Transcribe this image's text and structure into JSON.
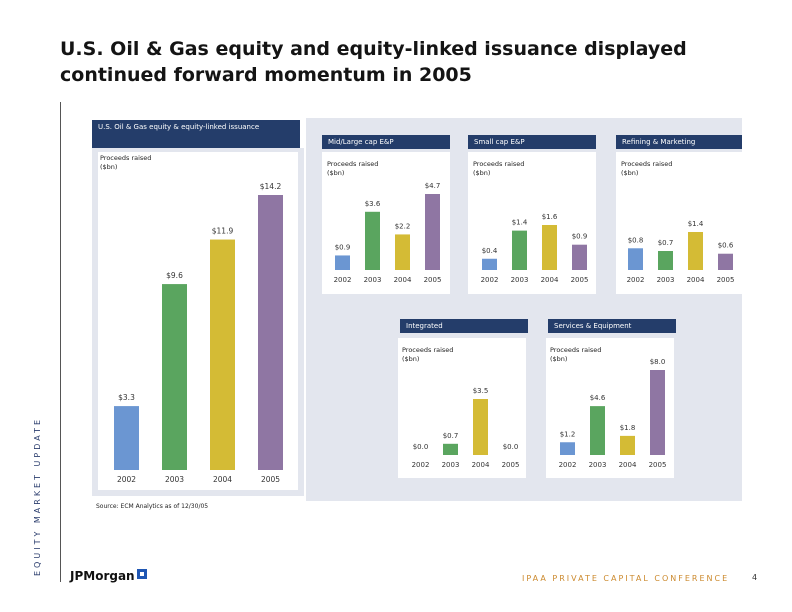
{
  "page": {
    "title": "U.S. Oil & Gas equity and equity-linked issuance displayed continued forward momentum in 2005",
    "side_label": "EQUITY MARKET UPDATE",
    "source": "Source: ECM Analytics as of 12/30/05",
    "brand": "JPMorgan",
    "conference": "IPAA PRIVATE CAPITAL CONFERENCE",
    "page_number": "4"
  },
  "colors": {
    "bars": [
      "#6b96d2",
      "#5aa55f",
      "#d4bb35",
      "#8f76a3"
    ],
    "header": "#243d6a",
    "panel_bg": "#e3e6ee"
  },
  "chart_data": [
    {
      "id": "total",
      "type": "bar",
      "title": "U.S. Oil & Gas equity & equity-linked issuance",
      "ylabel": "Proceeds raised ($bn)",
      "categories": [
        "2002",
        "2003",
        "2004",
        "2005"
      ],
      "values": [
        3.3,
        9.6,
        11.9,
        14.2
      ],
      "labels": [
        "$3.3",
        "$9.6",
        "$11.9",
        "$14.2"
      ],
      "ylim": [
        0,
        14.2
      ]
    },
    {
      "id": "midlarge",
      "type": "bar",
      "title": "Mid/Large cap E&P",
      "ylabel": "Proceeds raised ($bn)",
      "categories": [
        "2002",
        "2003",
        "2004",
        "2005"
      ],
      "values": [
        0.9,
        3.6,
        2.2,
        4.7
      ],
      "labels": [
        "$0.9",
        "$3.6",
        "$2.2",
        "$4.7"
      ],
      "ylim": [
        0,
        4.7
      ]
    },
    {
      "id": "smallcap",
      "type": "bar",
      "title": "Small cap E&P",
      "ylabel": "Proceeds raised ($bn)",
      "categories": [
        "2002",
        "2003",
        "2004",
        "2005"
      ],
      "values": [
        0.4,
        1.4,
        1.6,
        0.9
      ],
      "labels": [
        "$0.4",
        "$1.4",
        "$1.6",
        "$0.9"
      ],
      "ylim": [
        0,
        1.6
      ]
    },
    {
      "id": "refining",
      "type": "bar",
      "title": "Refining & Marketing",
      "ylabel": "Proceeds raised ($bn)",
      "categories": [
        "2002",
        "2003",
        "2004",
        "2005"
      ],
      "values": [
        0.8,
        0.7,
        1.4,
        0.6
      ],
      "labels": [
        "$0.8",
        "$0.7",
        "$1.4",
        "$0.6"
      ],
      "ylim": [
        0,
        1.4
      ]
    },
    {
      "id": "integrated",
      "type": "bar",
      "title": "Integrated",
      "ylabel": "Proceeds raised ($bn)",
      "categories": [
        "2002",
        "2003",
        "2004",
        "2005"
      ],
      "values": [
        0.0,
        0.7,
        3.5,
        0.0
      ],
      "labels": [
        "$0.0",
        "$0.7",
        "$3.5",
        "$0.0"
      ],
      "ylim": [
        0,
        3.5
      ]
    },
    {
      "id": "services",
      "type": "bar",
      "title": "Services & Equipment",
      "ylabel": "Proceeds raised ($bn)",
      "categories": [
        "2002",
        "2003",
        "2004",
        "2005"
      ],
      "values": [
        1.2,
        4.6,
        1.8,
        8.0
      ],
      "labels": [
        "$1.2",
        "$4.6",
        "$1.8",
        "$8.0"
      ],
      "ylim": [
        0,
        8.0
      ]
    }
  ]
}
